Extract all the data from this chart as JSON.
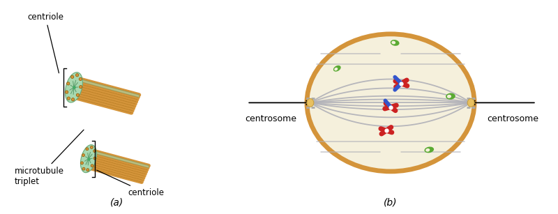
{
  "bg_color": "#ffffff",
  "fig_width": 8.0,
  "fig_height": 3.07,
  "label_a": "(a)",
  "label_b": "(b)",
  "panel_a": {
    "tube_color": "#d4943a",
    "tube_dark": "#8B5A00",
    "wall_color": "#a8d8b0",
    "wall_edge": "#6aaa7a",
    "spoke_color": "#5a9a6a",
    "center_color": "#44aa66",
    "label_centriole_top": "centriole",
    "label_centriole_bottom": "centriole",
    "label_microtubule": "microtubule\ntriplet"
  },
  "panel_b": {
    "cell_outer_color": "#d4943a",
    "cell_inner_color": "#f5f0dc",
    "spindle_color": "#b0b0b8",
    "chromosome_red": "#cc2222",
    "chromosome_blue": "#3355cc",
    "centrosome_color": "#e8c060",
    "centrosome_edge": "#c8a040",
    "organelle_color": "#5aaa33",
    "centriole_bar_color": "#aaaaaa",
    "label_centrosome_left": "centrosome",
    "label_centrosome_right": "centrosome"
  }
}
